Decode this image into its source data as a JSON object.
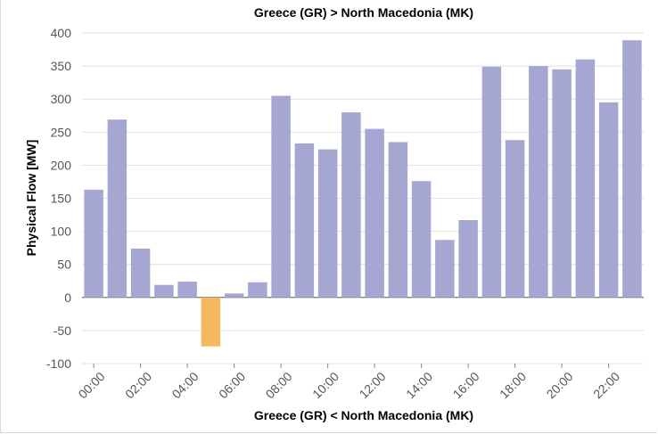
{
  "chart_data": {
    "type": "bar",
    "title": "Greece (GR) > North Macedonia (MK)",
    "xlabel": "Greece (GR) < North Macedonia (MK)",
    "ylabel": "Physical Flow [MW]",
    "ylim": [
      -100,
      400
    ],
    "yticks": [
      "400",
      "350",
      "300",
      "250",
      "200",
      "150",
      "100",
      "50",
      "0",
      "-50",
      "-100"
    ],
    "ytick_values": [
      400,
      350,
      300,
      250,
      200,
      150,
      100,
      50,
      0,
      -50,
      -100
    ],
    "xtick_labels": [
      "00:00",
      "02:00",
      "04:00",
      "06:00",
      "08:00",
      "10:00",
      "12:00",
      "14:00",
      "16:00",
      "18:00",
      "20:00",
      "22:00"
    ],
    "categories": [
      "00:00",
      "01:00",
      "02:00",
      "03:00",
      "04:00",
      "05:00",
      "06:00",
      "07:00",
      "08:00",
      "09:00",
      "10:00",
      "11:00",
      "12:00",
      "13:00",
      "14:00",
      "15:00",
      "16:00",
      "17:00",
      "18:00",
      "19:00",
      "20:00",
      "21:00",
      "22:00",
      "23:00"
    ],
    "values": [
      163,
      269,
      74,
      19,
      24,
      -74,
      6,
      23,
      305,
      233,
      224,
      280,
      255,
      235,
      176,
      87,
      117,
      349,
      238,
      350,
      345,
      360,
      295,
      389
    ],
    "grid": true,
    "colors": {
      "positive": "#a6a6d2",
      "negative": "#f5b85f"
    }
  }
}
